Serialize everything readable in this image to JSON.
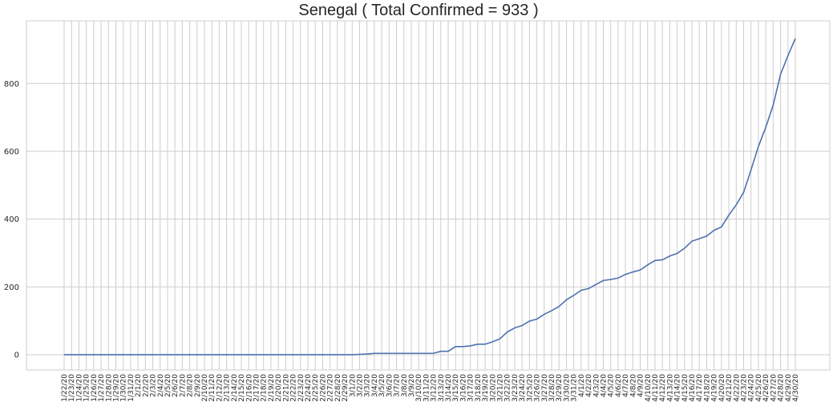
{
  "chart_data": {
    "type": "line",
    "title": "Senegal ( Total Confirmed = 933 )",
    "xlabel": "",
    "ylabel": "",
    "ylim": [
      -45,
      985
    ],
    "y_ticks": [
      0,
      200,
      400,
      600,
      800
    ],
    "grid": true,
    "line_color": "#4c72b0",
    "x": [
      "1/22/20",
      "1/23/20",
      "1/24/20",
      "1/25/20",
      "1/26/20",
      "1/27/20",
      "1/28/20",
      "1/29/20",
      "1/30/20",
      "1/31/20",
      "2/1/20",
      "2/2/20",
      "2/3/20",
      "2/4/20",
      "2/5/20",
      "2/6/20",
      "2/7/20",
      "2/8/20",
      "2/9/20",
      "2/10/20",
      "2/11/20",
      "2/12/20",
      "2/13/20",
      "2/14/20",
      "2/15/20",
      "2/16/20",
      "2/17/20",
      "2/18/20",
      "2/19/20",
      "2/20/20",
      "2/21/20",
      "2/22/20",
      "2/23/20",
      "2/24/20",
      "2/25/20",
      "2/26/20",
      "2/27/20",
      "2/28/20",
      "2/29/20",
      "3/1/20",
      "3/2/20",
      "3/3/20",
      "3/4/20",
      "3/5/20",
      "3/6/20",
      "3/7/20",
      "3/8/20",
      "3/9/20",
      "3/10/20",
      "3/11/20",
      "3/12/20",
      "3/13/20",
      "3/14/20",
      "3/15/20",
      "3/16/20",
      "3/17/20",
      "3/18/20",
      "3/19/20",
      "3/20/20",
      "3/21/20",
      "3/22/20",
      "3/23/20",
      "3/24/20",
      "3/25/20",
      "3/26/20",
      "3/27/20",
      "3/28/20",
      "3/29/20",
      "3/30/20",
      "3/31/20",
      "4/1/20",
      "4/2/20",
      "4/3/20",
      "4/4/20",
      "4/5/20",
      "4/6/20",
      "4/7/20",
      "4/8/20",
      "4/9/20",
      "4/10/20",
      "4/11/20",
      "4/12/20",
      "4/13/20",
      "4/14/20",
      "4/15/20",
      "4/16/20",
      "4/17/20",
      "4/18/20",
      "4/19/20",
      "4/20/20",
      "4/21/20",
      "4/22/20",
      "4/23/20",
      "4/24/20",
      "4/25/20",
      "4/26/20",
      "4/27/20",
      "4/28/20",
      "4/29/20",
      "4/30/20"
    ],
    "values": [
      0,
      0,
      0,
      0,
      0,
      0,
      0,
      0,
      0,
      0,
      0,
      0,
      0,
      0,
      0,
      0,
      0,
      0,
      0,
      0,
      0,
      0,
      0,
      0,
      0,
      0,
      0,
      0,
      0,
      0,
      0,
      0,
      0,
      0,
      0,
      0,
      0,
      0,
      0,
      0,
      1,
      2,
      4,
      4,
      4,
      4,
      4,
      4,
      4,
      4,
      4,
      10,
      10,
      24,
      24,
      26,
      31,
      31,
      38,
      47,
      67,
      79,
      86,
      99,
      105,
      119,
      130,
      142,
      162,
      175,
      190,
      195,
      207,
      219,
      222,
      226,
      237,
      244,
      250,
      265,
      278,
      280,
      291,
      299,
      314,
      335,
      342,
      350,
      367,
      377,
      412,
      442,
      479,
      545,
      614,
      671,
      736,
      827,
      882,
      933
    ]
  }
}
